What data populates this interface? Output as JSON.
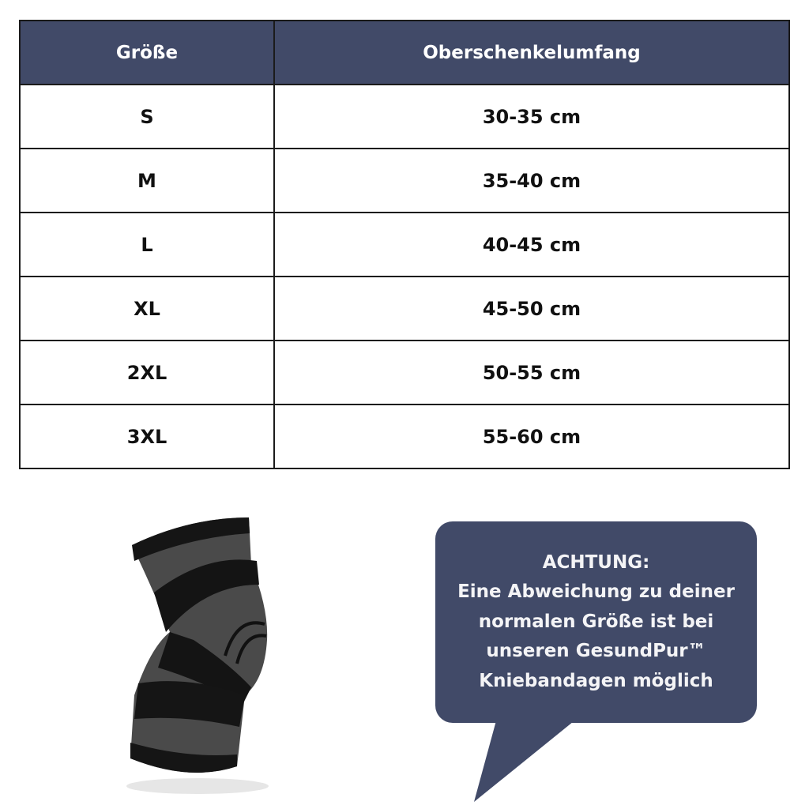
{
  "colors": {
    "header_bg": "#414a68",
    "bubble_bg": "#414a68",
    "border": "#1b1b1b"
  },
  "table": {
    "headers": [
      "Größe",
      "Oberschenkelumfang"
    ],
    "rows": [
      [
        "S",
        "30-35 cm"
      ],
      [
        "M",
        "35-40 cm"
      ],
      [
        "L",
        "40-45 cm"
      ],
      [
        "XL",
        "45-50 cm"
      ],
      [
        "2XL",
        "50-55 cm"
      ],
      [
        "3XL",
        "55-60 cm"
      ]
    ]
  },
  "notice": {
    "title": "ACHTUNG:",
    "lines": [
      "Eine Abweichung zu deiner",
      "normalen Größe ist bei",
      "unseren GesundPur™",
      "Kniebandagen möglich"
    ]
  },
  "image": {
    "icon": "knee-brace-image"
  }
}
